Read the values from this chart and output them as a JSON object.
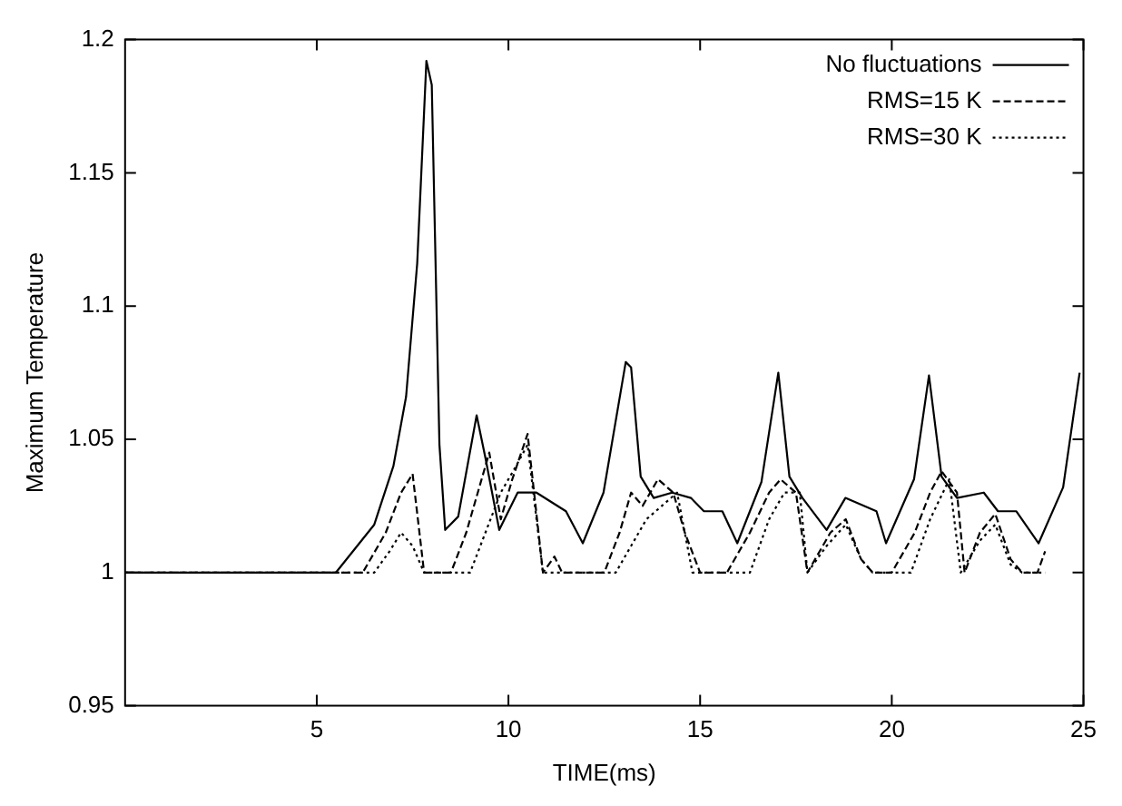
{
  "chart_data": {
    "type": "line",
    "xlabel": "TIME(ms)",
    "ylabel": "Maximum Temperature",
    "xlim": [
      0,
      25
    ],
    "xticks": [
      5,
      10,
      15,
      20,
      25
    ],
    "ylim": [
      0.95,
      1.2
    ],
    "yticks": [
      0.95,
      1,
      1.05,
      1.1,
      1.15,
      1.2
    ],
    "grid": false,
    "legend": "top right",
    "marker": "none",
    "series": [
      {
        "name": "No fluctuations",
        "color": "#000000",
        "line_style": "solid",
        "x": [
          0,
          5.5,
          6.5,
          7.0,
          7.33,
          7.62,
          7.86,
          8.0,
          8.2,
          8.35,
          8.69,
          9.17,
          9.4,
          9.76,
          10.24,
          10.73,
          11.5,
          11.94,
          12.48,
          13.06,
          13.2,
          13.45,
          13.79,
          14.27,
          14.76,
          15.1,
          15.58,
          15.97,
          16.6,
          17.04,
          17.33,
          17.67,
          18.3,
          18.79,
          19.6,
          19.85,
          20.58,
          20.97,
          21.3,
          21.7,
          22.4,
          22.77,
          23.25,
          23.83,
          24.47,
          24.9
        ],
        "values": [
          1,
          1,
          1.018,
          1.04,
          1.066,
          1.116,
          1.192,
          1.183,
          1.048,
          1.016,
          1.021,
          1.059,
          1.043,
          1.016,
          1.03,
          1.03,
          1.023,
          1.011,
          1.03,
          1.079,
          1.077,
          1.036,
          1.028,
          1.03,
          1.028,
          1.023,
          1.023,
          1.011,
          1.034,
          1.075,
          1.036,
          1.028,
          1.016,
          1.028,
          1.023,
          1.011,
          1.035,
          1.074,
          1.036,
          1.028,
          1.03,
          1.023,
          1.023,
          1.011,
          1.032,
          1.075
        ]
      },
      {
        "name": "RMS=15 K",
        "color": "#000000",
        "line_style": "dashed",
        "x": [
          0,
          6.2,
          6.8,
          7.2,
          7.5,
          7.8,
          8.5,
          8.9,
          9.2,
          9.5,
          9.8,
          10.1,
          10.5,
          10.9,
          11.2,
          11.4,
          12.5,
          12.9,
          13.2,
          13.5,
          13.9,
          14.3,
          14.6,
          15.0,
          15.7,
          16.3,
          16.8,
          17.1,
          17.5,
          17.8,
          18.4,
          18.8,
          19.2,
          19.5,
          20.0,
          20.6,
          21.0,
          21.3,
          21.7,
          21.9,
          22.3,
          22.7,
          23.1,
          23.4,
          23.8,
          24.0
        ],
        "values": [
          1,
          1,
          1.015,
          1.03,
          1.037,
          1,
          1,
          1.015,
          1.03,
          1.045,
          1.02,
          1.035,
          1.052,
          1,
          1.006,
          1,
          1,
          1.015,
          1.03,
          1.025,
          1.035,
          1.03,
          1.015,
          1,
          1,
          1.015,
          1.03,
          1.035,
          1.03,
          1,
          1.015,
          1.02,
          1.005,
          1,
          1,
          1.015,
          1.03,
          1.038,
          1.03,
          1,
          1.015,
          1.022,
          1.005,
          1,
          1,
          1.008
        ]
      },
      {
        "name": "RMS=30 K",
        "color": "#000000",
        "line_style": "dotted",
        "x": [
          0,
          6.5,
          6.9,
          7.2,
          7.5,
          7.8,
          9.0,
          9.4,
          9.8,
          10.2,
          10.5,
          10.9,
          12.8,
          13.2,
          13.6,
          14.0,
          14.4,
          14.8,
          16.3,
          16.8,
          17.2,
          17.6,
          17.8,
          18.3,
          18.8,
          19.2,
          19.5,
          20.5,
          21.0,
          21.5,
          21.8,
          22.3,
          22.7,
          23.1,
          23.4,
          24.0
        ],
        "values": [
          1,
          1,
          1.008,
          1.015,
          1.01,
          1,
          1,
          1.015,
          1.03,
          1.04,
          1.048,
          1,
          1,
          1.01,
          1.02,
          1.025,
          1.03,
          1,
          1,
          1.02,
          1.03,
          1.03,
          1,
          1.01,
          1.018,
          1.005,
          1,
          1,
          1.02,
          1.035,
          1,
          1.012,
          1.018,
          1.003,
          1,
          1
        ]
      }
    ]
  }
}
